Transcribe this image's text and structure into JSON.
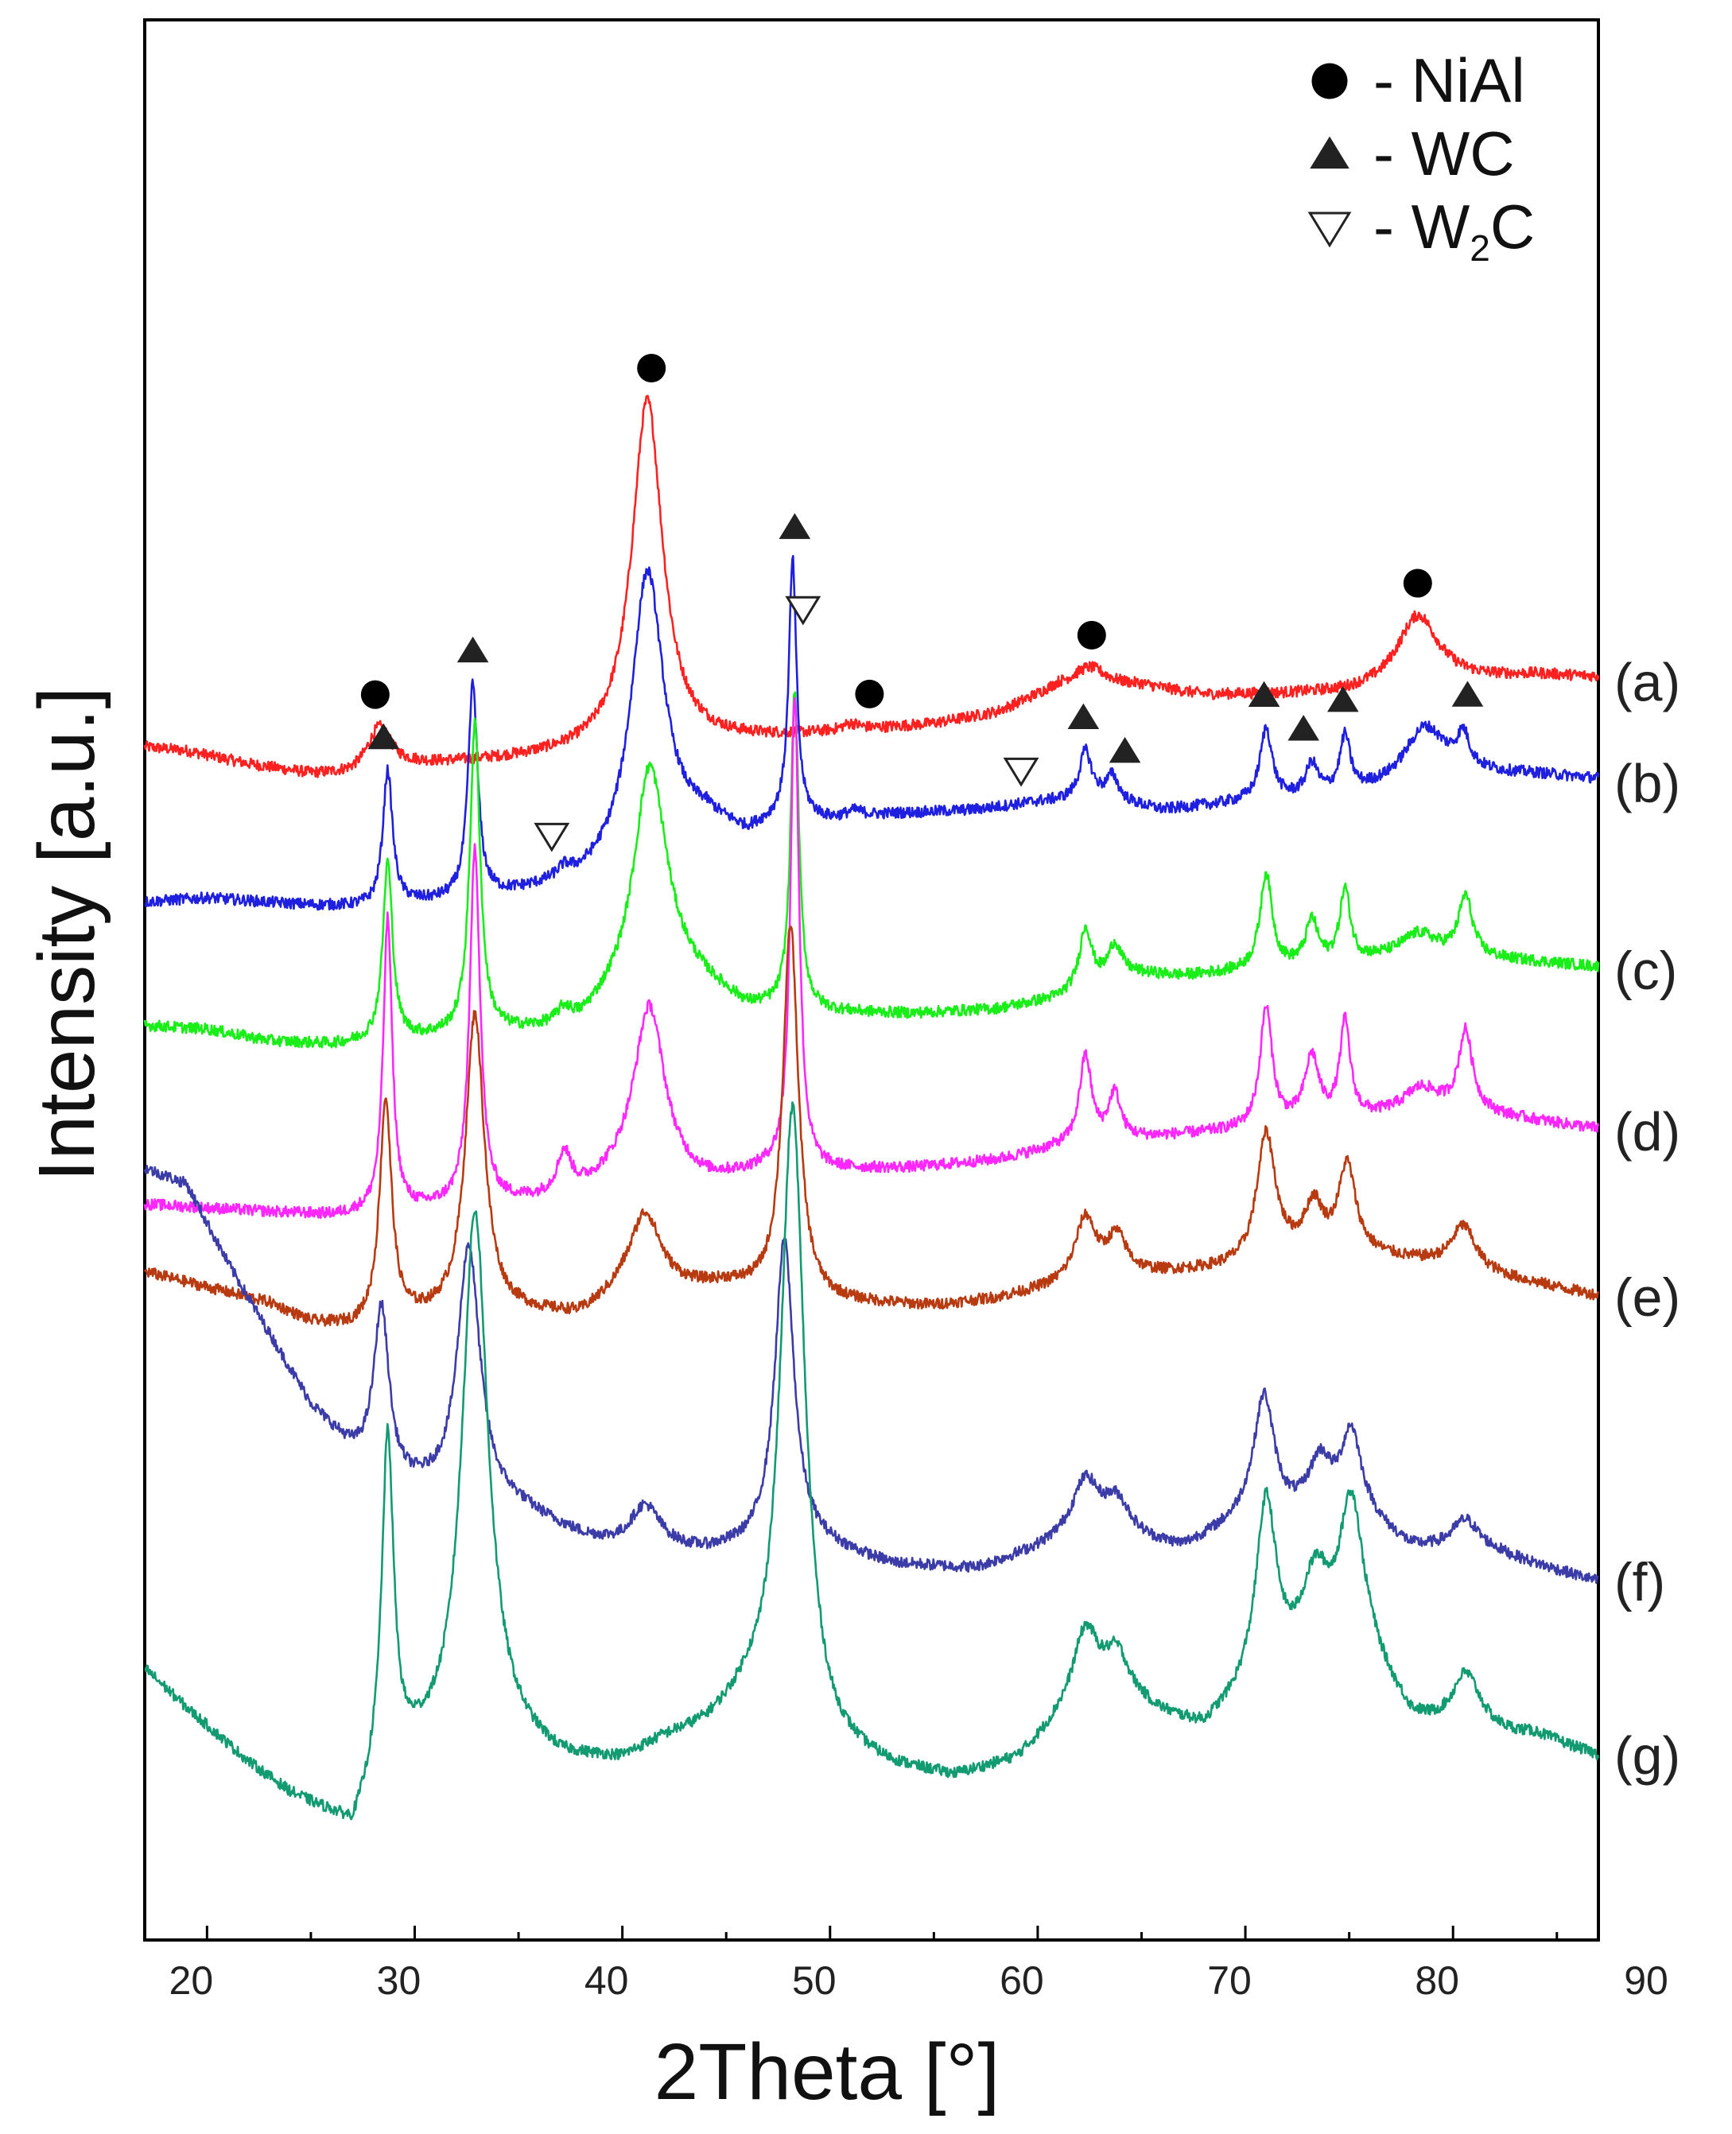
{
  "chart_data": {
    "type": "line",
    "title": "",
    "xlabel": "2Theta [°]",
    "ylabel": "Intensity [a.u.]",
    "xlim": [
      17,
      87
    ],
    "xticks": [
      20,
      30,
      40,
      50,
      60,
      70,
      80,
      90
    ],
    "xtick_labels": [
      "20",
      "30",
      "40",
      "50",
      "60",
      "70",
      "80",
      "90"
    ],
    "yticks": "none",
    "legend": {
      "placement": "top-right",
      "entries": [
        {
          "symbol": "filled-circle",
          "label": "- NiAl"
        },
        {
          "symbol": "filled-triangle",
          "label": "- WC"
        },
        {
          "symbol": "open-triangle-down",
          "label_main": "- W",
          "label_sub": "2",
          "label_tail": "C"
        }
      ]
    },
    "series": [
      {
        "name": "(a)",
        "color": "#ff2020",
        "offset": 700,
        "baseline": [
          [
            17,
            10
          ],
          [
            19,
            5
          ],
          [
            22,
            -12
          ],
          [
            25,
            -25
          ],
          [
            27,
            -26
          ],
          [
            30,
            -14
          ],
          [
            35,
            -6
          ],
          [
            40,
            4
          ],
          [
            50,
            26
          ],
          [
            55,
            38
          ],
          [
            58,
            52
          ],
          [
            61,
            84
          ],
          [
            65,
            86
          ],
          [
            68,
            75
          ],
          [
            72,
            76
          ],
          [
            75,
            78
          ],
          [
            78,
            85
          ],
          [
            80,
            92
          ],
          [
            84,
            100
          ],
          [
            87,
            98
          ]
        ],
        "peaks": [
          [
            28.3,
            55,
            0.7
          ],
          [
            41.2,
            440,
            0.9
          ],
          [
            51.0,
            8,
            0.5
          ],
          [
            62.5,
            25,
            1.0
          ],
          [
            78.3,
            90,
            1.2
          ]
        ]
      },
      {
        "name": "(b)",
        "color": "#1f1fe0",
        "offset": 500,
        "baseline": [
          [
            17,
            15
          ],
          [
            20,
            20
          ],
          [
            22,
            16
          ],
          [
            25,
            10
          ],
          [
            28,
            7
          ],
          [
            30,
            12
          ],
          [
            33,
            16
          ],
          [
            36,
            28
          ],
          [
            38,
            36
          ],
          [
            40,
            55
          ],
          [
            44,
            110
          ],
          [
            46,
            96
          ],
          [
            48,
            120
          ],
          [
            50,
            115
          ],
          [
            53,
            124
          ],
          [
            57,
            130
          ],
          [
            60,
            140
          ],
          [
            63,
            145
          ],
          [
            66,
            130
          ],
          [
            70,
            140
          ],
          [
            73,
            145
          ],
          [
            75,
            150
          ],
          [
            78,
            160
          ],
          [
            80,
            175
          ],
          [
            84,
            175
          ],
          [
            87,
            170
          ]
        ],
        "peaks": [
          [
            28.7,
            170,
            0.28
          ],
          [
            32.8,
            270,
            0.28
          ],
          [
            37.2,
            12,
            0.4
          ],
          [
            41.2,
            360,
            0.95
          ],
          [
            48.2,
            320,
            0.22
          ],
          [
            51.2,
            8,
            0.5
          ],
          [
            62.3,
            60,
            0.35
          ],
          [
            63.6,
            30,
            0.35
          ],
          [
            71.0,
            90,
            0.35
          ],
          [
            73.2,
            40,
            0.35
          ],
          [
            74.8,
            70,
            0.3
          ],
          [
            78.6,
            70,
            1.2
          ],
          [
            80.5,
            40,
            0.35
          ]
        ]
      },
      {
        "name": "(c)",
        "color": "#19ee19",
        "offset": 340,
        "baseline": [
          [
            17,
            20
          ],
          [
            20,
            15
          ],
          [
            23,
            0
          ],
          [
            26,
            -5
          ],
          [
            28,
            -2
          ],
          [
            32,
            5
          ],
          [
            36,
            12
          ],
          [
            38,
            20
          ],
          [
            40,
            60
          ],
          [
            42,
            100
          ],
          [
            44,
            70
          ],
          [
            46,
            40
          ],
          [
            50,
            35
          ],
          [
            54,
            34
          ],
          [
            58,
            40
          ],
          [
            61,
            54
          ],
          [
            64,
            86
          ],
          [
            67,
            82
          ],
          [
            70,
            88
          ],
          [
            72,
            92
          ],
          [
            75,
            100
          ],
          [
            78,
            110
          ],
          [
            81,
            105
          ],
          [
            84,
            100
          ],
          [
            87,
            94
          ]
        ],
        "peaks": [
          [
            28.7,
            225,
            0.28
          ],
          [
            32.9,
            390,
            0.3
          ],
          [
            37.2,
            17,
            0.4
          ],
          [
            41.3,
            260,
            0.9
          ],
          [
            48.3,
            400,
            0.24
          ],
          [
            62.3,
            75,
            0.35
          ],
          [
            63.7,
            38,
            0.35
          ],
          [
            71.0,
            120,
            0.35
          ],
          [
            73.2,
            55,
            0.35
          ],
          [
            74.8,
            90,
            0.3
          ],
          [
            78.4,
            25,
            1.0
          ],
          [
            80.6,
            75,
            0.4
          ]
        ]
      },
      {
        "name": "(d)",
        "color": "#ff26ff",
        "offset": 120,
        "baseline": [
          [
            17,
            15
          ],
          [
            20,
            10
          ],
          [
            23,
            5
          ],
          [
            26,
            0
          ],
          [
            28,
            2
          ],
          [
            32,
            10
          ],
          [
            36,
            18
          ],
          [
            38,
            28
          ],
          [
            40,
            45
          ],
          [
            44,
            40
          ],
          [
            47,
            55
          ],
          [
            50,
            56
          ],
          [
            54,
            60
          ],
          [
            58,
            70
          ],
          [
            61,
            86
          ],
          [
            64,
            96
          ],
          [
            67,
            102
          ],
          [
            70,
            108
          ],
          [
            73,
            118
          ],
          [
            76,
            124
          ],
          [
            78,
            130
          ],
          [
            81,
            130
          ],
          [
            84,
            120
          ],
          [
            87,
            110
          ]
        ],
        "peaks": [
          [
            28.7,
            370,
            0.26
          ],
          [
            32.9,
            450,
            0.3
          ],
          [
            37.2,
            50,
            0.4
          ],
          [
            41.3,
            220,
            0.9
          ],
          [
            48.3,
            600,
            0.25
          ],
          [
            62.3,
            110,
            0.35
          ],
          [
            63.7,
            58,
            0.35
          ],
          [
            71.0,
            150,
            0.35
          ],
          [
            73.2,
            80,
            0.4
          ],
          [
            74.8,
            120,
            0.3
          ],
          [
            78.5,
            30,
            1.0
          ],
          [
            80.6,
            100,
            0.4
          ]
        ]
      },
      {
        "name": "(e)",
        "color": "#b83a10",
        "offset": 0,
        "baseline": [
          [
            17,
            50
          ],
          [
            20,
            30
          ],
          [
            23,
            10
          ],
          [
            25,
            -15
          ],
          [
            27,
            -22
          ],
          [
            30,
            -12
          ],
          [
            35,
            -5
          ],
          [
            38,
            -8
          ],
          [
            40,
            20
          ],
          [
            45,
            30
          ],
          [
            48,
            15
          ],
          [
            50,
            10
          ],
          [
            55,
            6
          ],
          [
            58,
            15
          ],
          [
            61,
            30
          ],
          [
            65,
            45
          ],
          [
            70,
            55
          ],
          [
            73,
            75
          ],
          [
            76,
            70
          ],
          [
            79,
            60
          ],
          [
            82,
            45
          ],
          [
            87,
            20
          ]
        ],
        "peaks": [
          [
            28.6,
            280,
            0.35
          ],
          [
            32.9,
            380,
            0.55
          ],
          [
            41.1,
            100,
            0.9
          ],
          [
            48.1,
            470,
            0.45
          ],
          [
            62.3,
            80,
            0.6
          ],
          [
            63.8,
            50,
            0.6
          ],
          [
            71.0,
            160,
            0.55
          ],
          [
            73.3,
            55,
            0.5
          ],
          [
            74.9,
            110,
            0.5
          ],
          [
            80.5,
            55,
            0.7
          ]
        ]
      },
      {
        "name": "(f)",
        "color": "#3c3ca8",
        "offset": -340,
        "baseline": [
          [
            17,
            520
          ],
          [
            19,
            500
          ],
          [
            21,
            400
          ],
          [
            23,
            310
          ],
          [
            25,
            220
          ],
          [
            27,
            160
          ],
          [
            29,
            120
          ],
          [
            31,
            110
          ],
          [
            35,
            90
          ],
          [
            38,
            55
          ],
          [
            40,
            40
          ],
          [
            44,
            35
          ],
          [
            46,
            40
          ],
          [
            48,
            50
          ],
          [
            50,
            40
          ],
          [
            53,
            20
          ],
          [
            57,
            15
          ],
          [
            61,
            45
          ],
          [
            64,
            50
          ],
          [
            67,
            40
          ],
          [
            70,
            75
          ],
          [
            73,
            75
          ],
          [
            76,
            70
          ],
          [
            78,
            40
          ],
          [
            82,
            35
          ],
          [
            87,
            0
          ]
        ],
        "peaks": [
          [
            28.4,
            210,
            0.45
          ],
          [
            32.6,
            320,
            0.65
          ],
          [
            41.1,
            55,
            0.9
          ],
          [
            47.8,
            380,
            0.55
          ],
          [
            62.3,
            75,
            0.8
          ],
          [
            63.8,
            45,
            0.8
          ],
          [
            70.9,
            155,
            0.6
          ],
          [
            73.6,
            70,
            0.7
          ],
          [
            75.1,
            110,
            0.6
          ],
          [
            80.6,
            40,
            0.8
          ]
        ]
      },
      {
        "name": "(g)",
        "color": "#129a70",
        "offset": -680,
        "baseline": [
          [
            17,
            230
          ],
          [
            19,
            180
          ],
          [
            22,
            110
          ],
          [
            24,
            70
          ],
          [
            26,
            40
          ],
          [
            27,
            20
          ],
          [
            28,
            70
          ],
          [
            30,
            115
          ],
          [
            34,
            140
          ],
          [
            37,
            110
          ],
          [
            40,
            110
          ],
          [
            42,
            135
          ],
          [
            44,
            150
          ],
          [
            46,
            180
          ],
          [
            48,
            160
          ],
          [
            50,
            120
          ],
          [
            53,
            100
          ],
          [
            56,
            90
          ],
          [
            59,
            110
          ],
          [
            61,
            150
          ],
          [
            65,
            170
          ],
          [
            68,
            150
          ],
          [
            70,
            190
          ],
          [
            73,
            230
          ],
          [
            76,
            230
          ],
          [
            78,
            160
          ],
          [
            80,
            140
          ],
          [
            84,
            145
          ],
          [
            87,
            120
          ]
        ],
        "peaks": [
          [
            28.7,
            425,
            0.35
          ],
          [
            32.9,
            670,
            0.75
          ],
          [
            48.2,
            780,
            0.7
          ],
          [
            62.3,
            110,
            0.8
          ],
          [
            63.8,
            70,
            0.8
          ],
          [
            71.0,
            230,
            0.6
          ],
          [
            73.4,
            100,
            0.8
          ],
          [
            75.1,
            200,
            0.7
          ],
          [
            80.6,
            80,
            0.9
          ]
        ]
      }
    ],
    "annotations": [
      {
        "symbol": "filled-circle",
        "x": 28.1,
        "series": "(a)"
      },
      {
        "symbol": "filled-circle",
        "x": 41.4,
        "series": "(a)"
      },
      {
        "symbol": "filled-circle",
        "x": 51.9,
        "series": "(a)"
      },
      {
        "symbol": "filled-circle",
        "x": 62.6,
        "series": "(a)"
      },
      {
        "symbol": "filled-circle",
        "x": 78.3,
        "series": "(a)"
      },
      {
        "symbol": "filled-triangle",
        "x": 28.5,
        "series": "(b)"
      },
      {
        "symbol": "filled-triangle",
        "x": 32.8,
        "series": "(b)"
      },
      {
        "symbol": "filled-triangle",
        "x": 48.3,
        "series": "(b)"
      },
      {
        "symbol": "filled-triangle",
        "x": 62.2,
        "series": "(b)"
      },
      {
        "symbol": "filled-triangle",
        "x": 64.2,
        "series": "(b)"
      },
      {
        "symbol": "filled-triangle",
        "x": 70.9,
        "series": "(b)"
      },
      {
        "symbol": "filled-triangle",
        "x": 72.8,
        "series": "(b)"
      },
      {
        "symbol": "filled-triangle",
        "x": 74.7,
        "series": "(b)"
      },
      {
        "symbol": "filled-triangle",
        "x": 80.7,
        "series": "(b)"
      },
      {
        "symbol": "open-triangle-down",
        "x": 36.6,
        "series": "(b)"
      },
      {
        "symbol": "open-triangle-down",
        "x": 48.7,
        "series": "(b)"
      },
      {
        "symbol": "open-triangle-down",
        "x": 59.2,
        "series": "(b)"
      }
    ]
  }
}
